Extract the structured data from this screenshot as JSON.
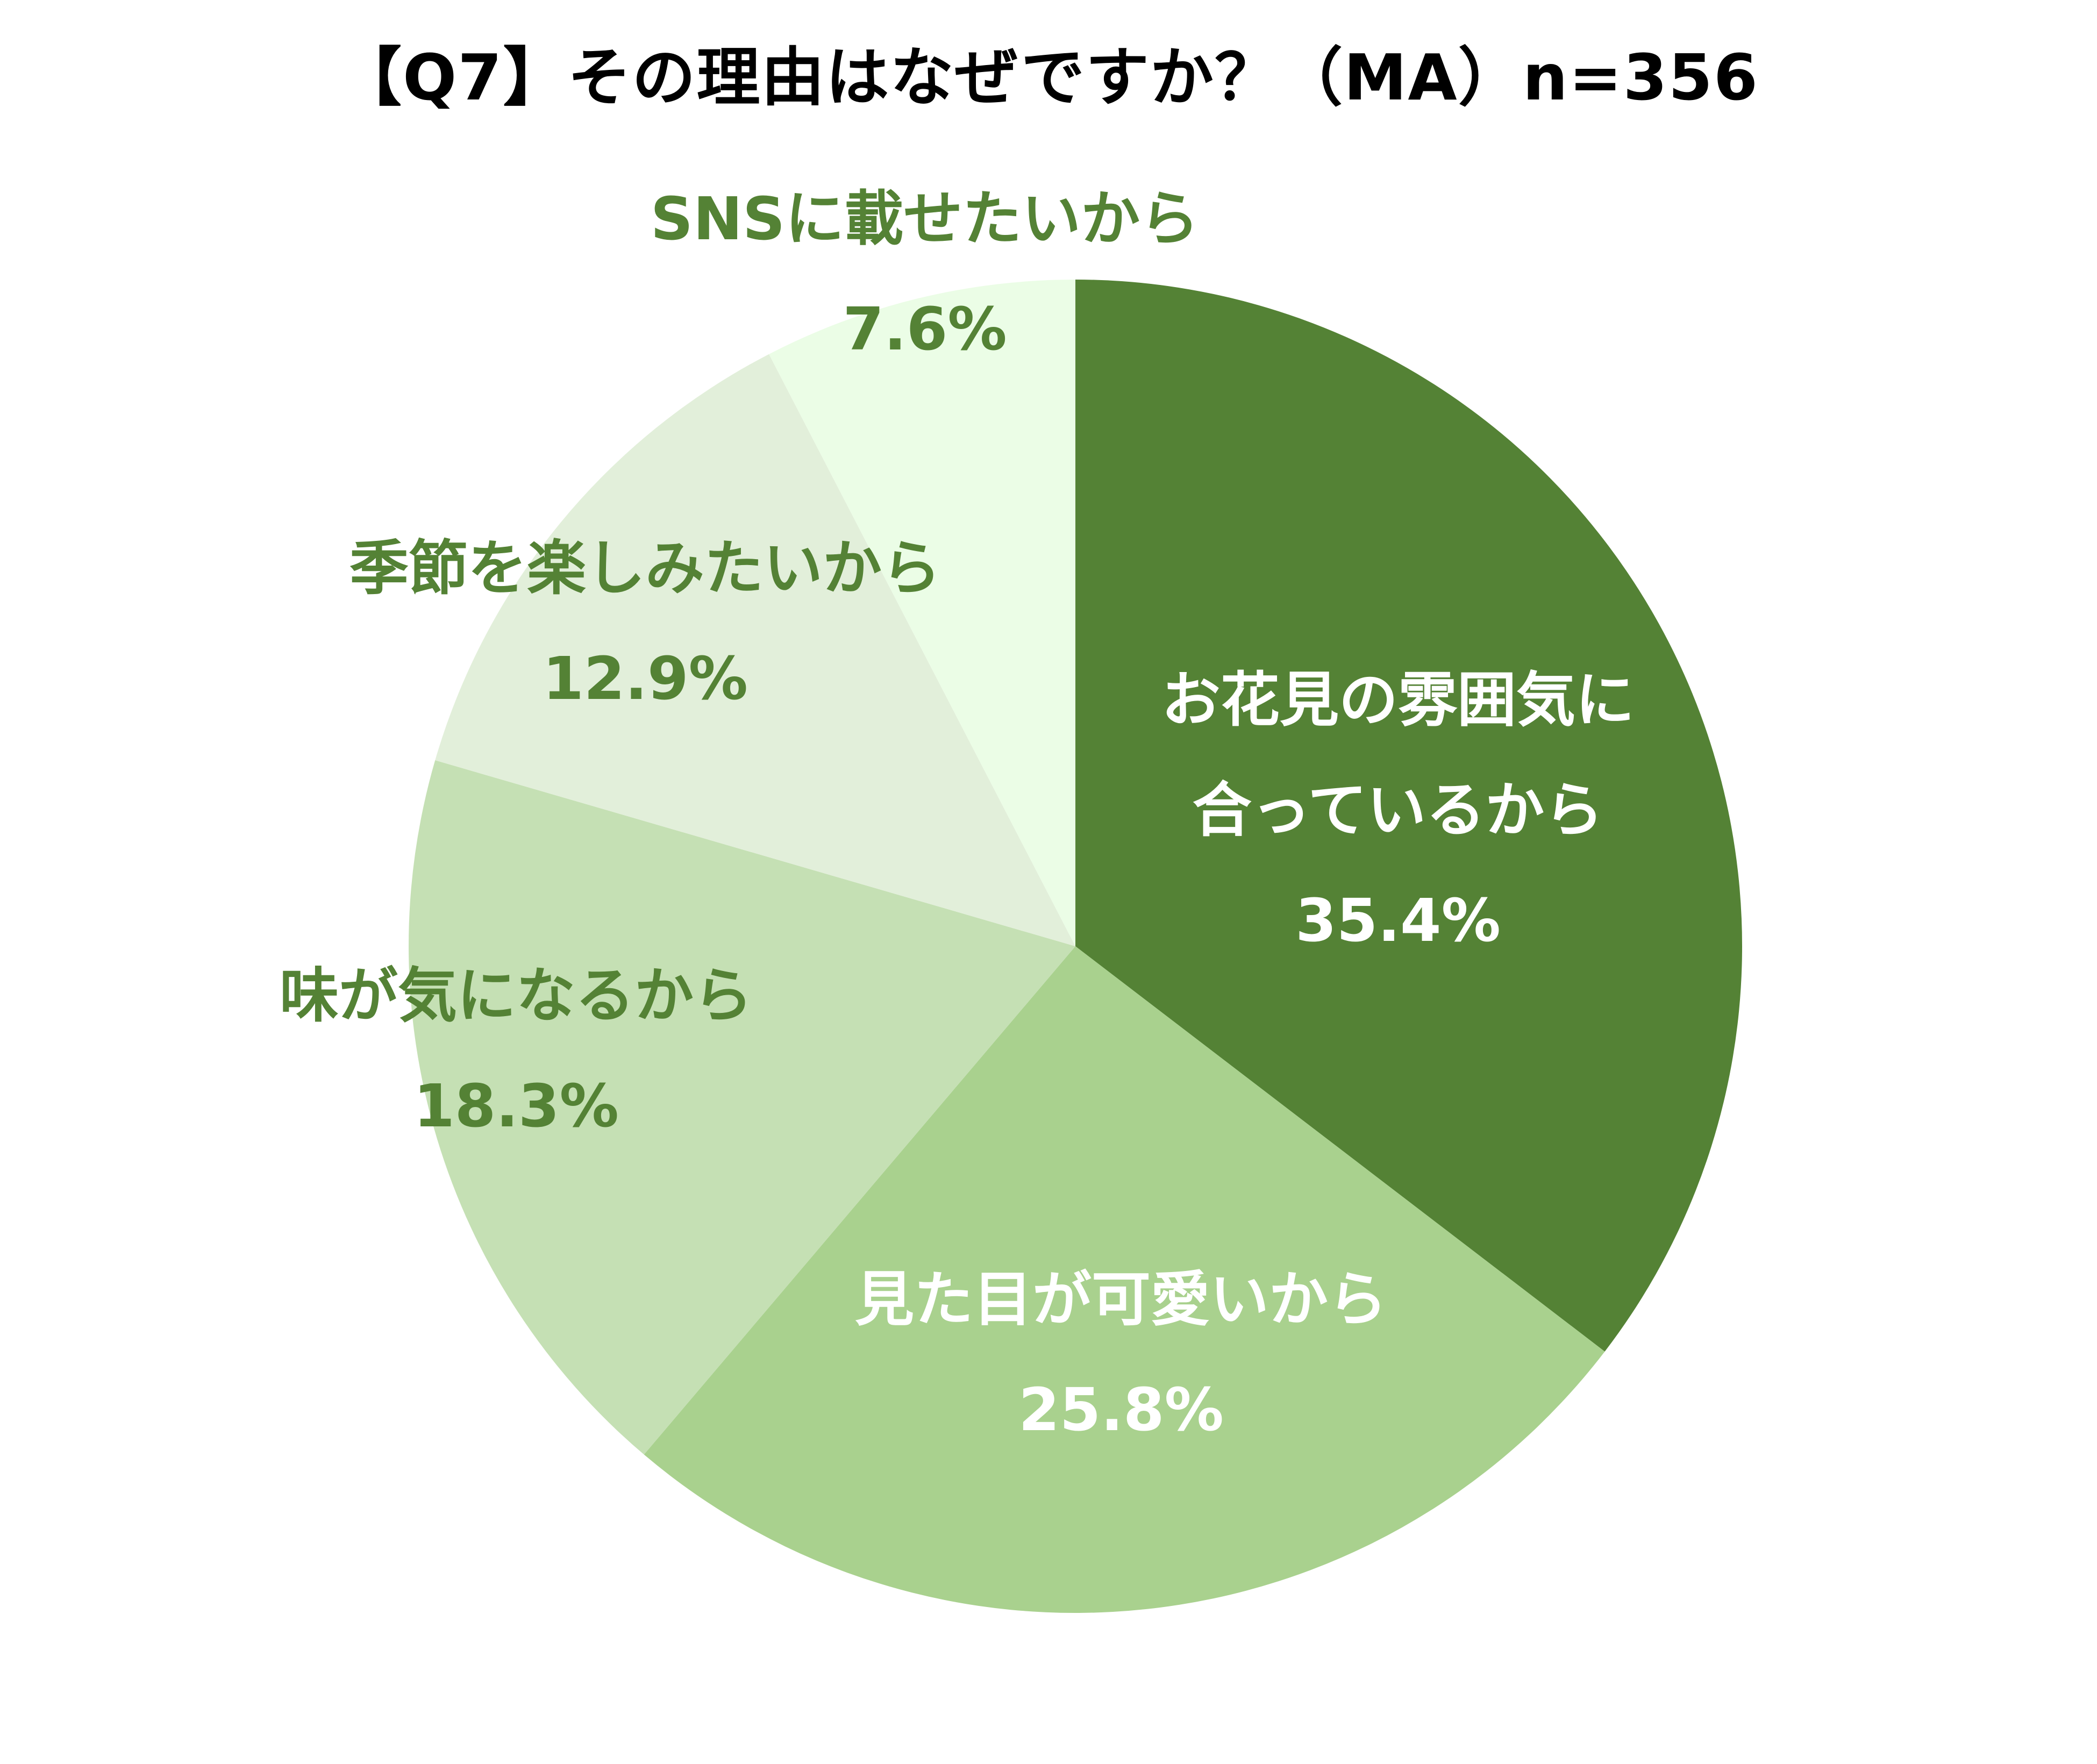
{
  "chart_data": {
    "type": "pie",
    "title": "【Q7】その理由はなぜですか？（MA）n=356",
    "start_angle_deg": 0,
    "direction": "clockwise",
    "slices": [
      {
        "label_lines": [
          "お花見の雰囲気に",
          "合っているから"
        ],
        "value": 35.4,
        "value_label": "35.4%",
        "color": "#548235",
        "text_color": "#ffffff"
      },
      {
        "label_lines": [
          "見た目が可愛いから"
        ],
        "value": 25.8,
        "value_label": "25.8%",
        "color": "#a9d18e",
        "text_color": "#ffffff"
      },
      {
        "label_lines": [
          "味が気になるから"
        ],
        "value": 18.3,
        "value_label": "18.3%",
        "color": "#c5e0b4",
        "text_color": "#548235"
      },
      {
        "label_lines": [
          "季節を楽しみたいから"
        ],
        "value": 12.9,
        "value_label": "12.9%",
        "color": "#e2efda",
        "text_color": "#548235"
      },
      {
        "label_lines": [
          "SNSに載せたいから"
        ],
        "value": 7.6,
        "value_label": "7.6%",
        "color": "#ebfde6",
        "text_color": "#548235"
      }
    ]
  }
}
